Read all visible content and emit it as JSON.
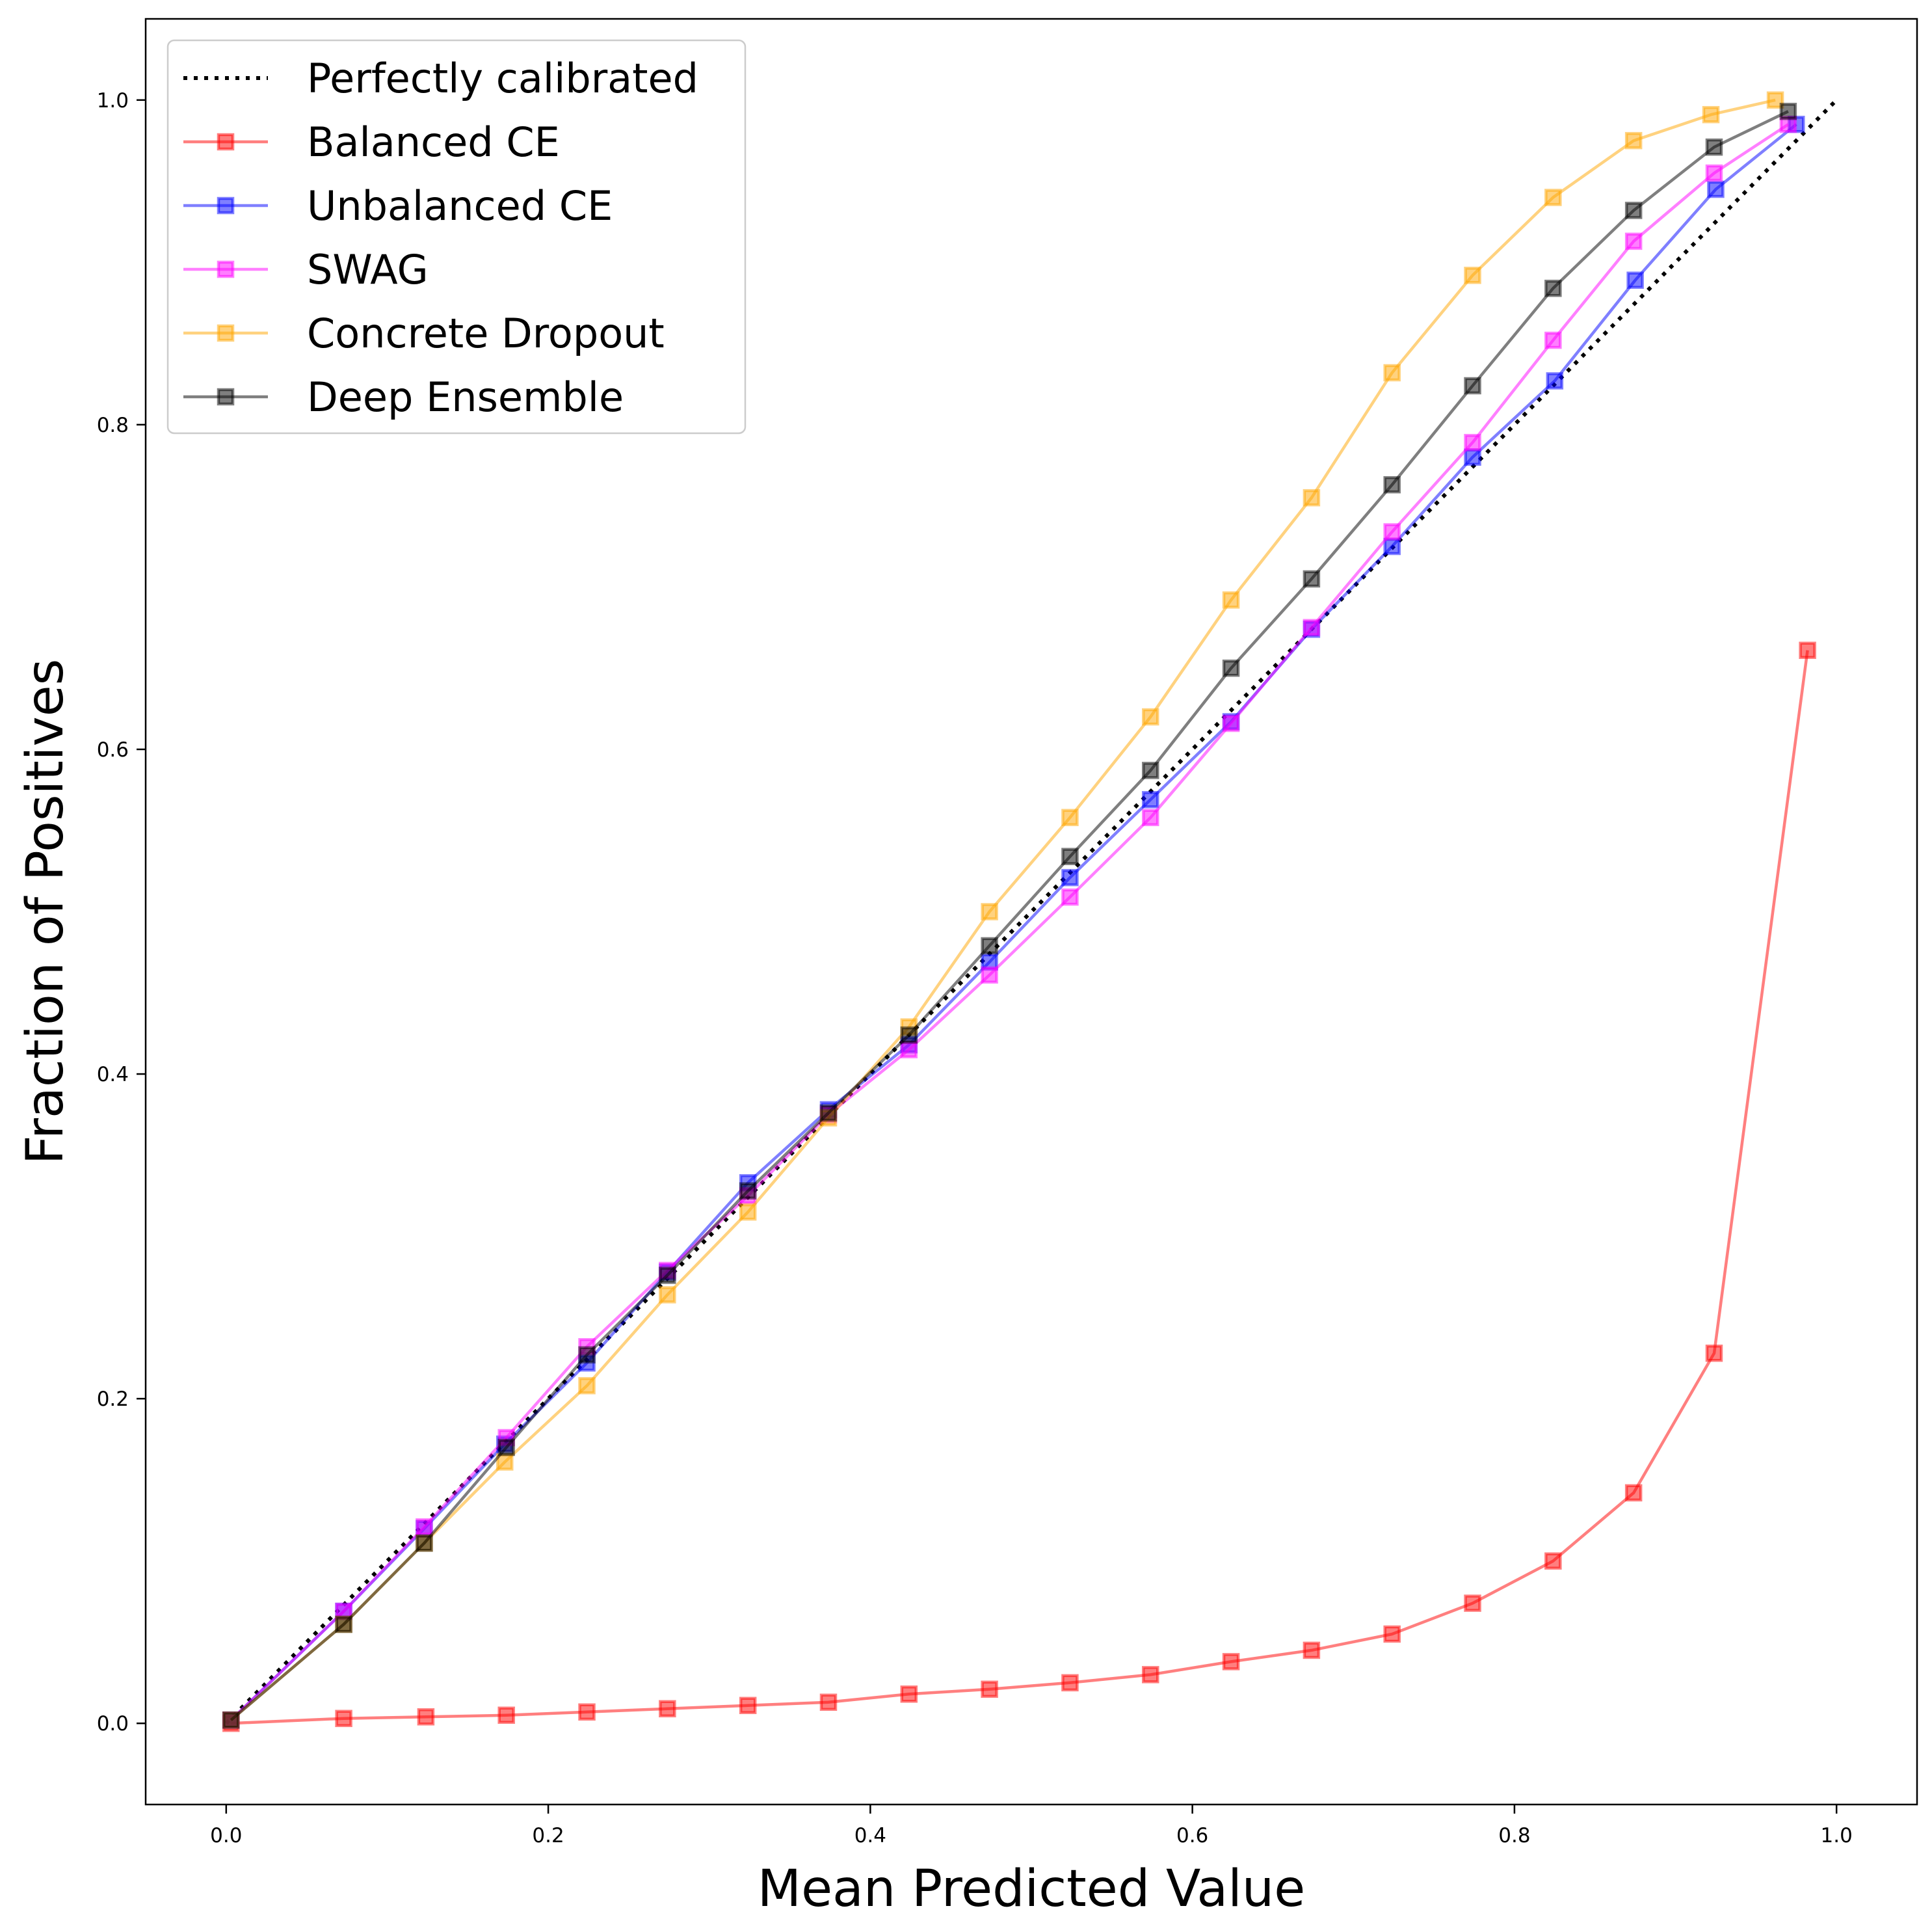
{
  "chart_data": {
    "type": "line",
    "title": "",
    "xlabel": "Mean Predicted Value",
    "ylabel": "Fraction of Positives",
    "xlim": [
      -0.05,
      1.05
    ],
    "ylim": [
      -0.05,
      1.05
    ],
    "xticks": [
      0.0,
      0.2,
      0.4,
      0.6,
      0.8,
      1.0
    ],
    "xtick_labels": [
      "0.0",
      "0.2",
      "0.4",
      "0.6",
      "0.8",
      "1.0"
    ],
    "yticks": [
      0.0,
      0.2,
      0.4,
      0.6,
      0.8,
      1.0
    ],
    "ytick_labels": [
      "0.0",
      "0.2",
      "0.4",
      "0.6",
      "0.8",
      "1.0"
    ],
    "grid": false,
    "legend_position": "top-left",
    "reference_line": {
      "name": "Perfectly calibrated",
      "color": "#000000",
      "style": "dotted",
      "x": [
        0,
        1
      ],
      "y": [
        0,
        1
      ]
    },
    "series": [
      {
        "name": "Balanced CE",
        "color": "#ff0000",
        "x": [
          0.003,
          0.073,
          0.124,
          0.174,
          0.224,
          0.274,
          0.324,
          0.374,
          0.424,
          0.474,
          0.524,
          0.574,
          0.624,
          0.674,
          0.724,
          0.774,
          0.824,
          0.874,
          0.924,
          0.982
        ],
        "y": [
          0.0,
          0.003,
          0.004,
          0.005,
          0.007,
          0.009,
          0.011,
          0.013,
          0.018,
          0.021,
          0.025,
          0.03,
          0.038,
          0.045,
          0.055,
          0.074,
          0.1,
          0.142,
          0.228,
          0.661
        ]
      },
      {
        "name": "Unbalanced CE",
        "color": "#0000ff",
        "x": [
          0.003,
          0.073,
          0.123,
          0.173,
          0.224,
          0.274,
          0.324,
          0.374,
          0.424,
          0.474,
          0.524,
          0.574,
          0.624,
          0.674,
          0.724,
          0.774,
          0.825,
          0.875,
          0.925,
          0.975
        ],
        "y": [
          0.002,
          0.069,
          0.12,
          0.172,
          0.222,
          0.278,
          0.333,
          0.378,
          0.418,
          0.469,
          0.521,
          0.569,
          0.617,
          0.674,
          0.725,
          0.78,
          0.827,
          0.889,
          0.945,
          0.985
        ]
      },
      {
        "name": "SWAG",
        "color": "#ff00ff",
        "x": [
          0.003,
          0.073,
          0.123,
          0.174,
          0.224,
          0.274,
          0.324,
          0.374,
          0.424,
          0.474,
          0.524,
          0.574,
          0.624,
          0.674,
          0.724,
          0.774,
          0.824,
          0.874,
          0.924,
          0.97
        ],
        "y": [
          0.002,
          0.069,
          0.121,
          0.176,
          0.232,
          0.279,
          0.325,
          0.375,
          0.415,
          0.461,
          0.509,
          0.558,
          0.616,
          0.675,
          0.734,
          0.789,
          0.852,
          0.913,
          0.955,
          0.985
        ]
      },
      {
        "name": "Concrete Dropout",
        "color": "#ffa500",
        "x": [
          0.003,
          0.073,
          0.123,
          0.173,
          0.224,
          0.274,
          0.324,
          0.374,
          0.424,
          0.474,
          0.524,
          0.574,
          0.624,
          0.674,
          0.724,
          0.774,
          0.824,
          0.874,
          0.922,
          0.962
        ],
        "y": [
          0.002,
          0.061,
          0.111,
          0.161,
          0.208,
          0.264,
          0.315,
          0.373,
          0.429,
          0.5,
          0.558,
          0.62,
          0.692,
          0.755,
          0.832,
          0.892,
          0.94,
          0.975,
          0.991,
          1.0
        ]
      },
      {
        "name": "Deep Ensemble",
        "color": "#000000",
        "x": [
          0.003,
          0.073,
          0.123,
          0.174,
          0.224,
          0.274,
          0.324,
          0.374,
          0.424,
          0.474,
          0.524,
          0.574,
          0.624,
          0.674,
          0.724,
          0.774,
          0.824,
          0.874,
          0.924,
          0.97
        ],
        "y": [
          0.002,
          0.061,
          0.111,
          0.17,
          0.227,
          0.276,
          0.328,
          0.376,
          0.424,
          0.479,
          0.534,
          0.587,
          0.65,
          0.705,
          0.763,
          0.824,
          0.884,
          0.932,
          0.971,
          0.993
        ]
      }
    ]
  }
}
